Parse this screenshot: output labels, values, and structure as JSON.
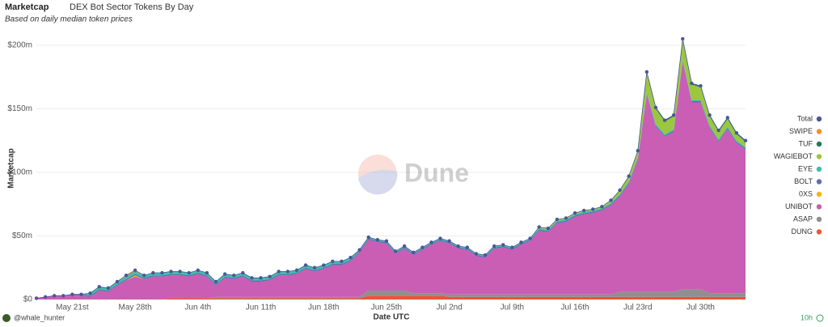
{
  "chart_data": {
    "type": "stacked_area",
    "title": "Marketcap",
    "subtitle": "DEX Bot Sector Tokens By Day",
    "note": "Based on daily median token prices",
    "xlabel": "Date UTC",
    "ylabel": "Marketcap",
    "watermark": "Dune",
    "author": "@whale_hunter",
    "refresh": "10h",
    "categories": [
      "May 17th",
      "May 18th",
      "May 19th",
      "May 20th",
      "May 21st",
      "May 22nd",
      "May 23rd",
      "May 24th",
      "May 25th",
      "May 26th",
      "May 27th",
      "May 28th",
      "May 29th",
      "May 30th",
      "May 31st",
      "Jun 1st",
      "Jun 2nd",
      "Jun 3rd",
      "Jun 4th",
      "Jun 5th",
      "Jun 6th",
      "Jun 7th",
      "Jun 8th",
      "Jun 9th",
      "Jun 10th",
      "Jun 11th",
      "Jun 12th",
      "Jun 13th",
      "Jun 14th",
      "Jun 15th",
      "Jun 16th",
      "Jun 17th",
      "Jun 18th",
      "Jun 19th",
      "Jun 20th",
      "Jun 21st",
      "Jun 22nd",
      "Jun 23rd",
      "Jun 24th",
      "Jun 25th",
      "Jun 26th",
      "Jun 27th",
      "Jun 28th",
      "Jun 29th",
      "Jun 30th",
      "Jul 1st",
      "Jul 2nd",
      "Jul 3rd",
      "Jul 4th",
      "Jul 5th",
      "Jul 6th",
      "Jul 7th",
      "Jul 8th",
      "Jul 9th",
      "Jul 10th",
      "Jul 11th",
      "Jul 12th",
      "Jul 13th",
      "Jul 14th",
      "Jul 15th",
      "Jul 16th",
      "Jul 17th",
      "Jul 18th",
      "Jul 19th",
      "Jul 20th",
      "Jul 21st",
      "Jul 22nd",
      "Jul 23rd",
      "Jul 24th",
      "Jul 25th",
      "Jul 26th",
      "Jul 27th",
      "Jul 28th",
      "Jul 29th",
      "Jul 30th",
      "Jul 31st",
      "Aug 1st",
      "Aug 2nd",
      "Aug 3rd",
      "Aug 4th"
    ],
    "xticks": [
      "May 21st",
      "May 28th",
      "Jun 4th",
      "Jun 11th",
      "Jun 18th",
      "Jun 25th",
      "Jul 2nd",
      "Jul 9th",
      "Jul 16th",
      "Jul 23rd",
      "Jul 30th"
    ],
    "ylim": [
      0,
      212
    ],
    "yticks": [
      {
        "value": 0,
        "label": "$0"
      },
      {
        "value": 50,
        "label": "$50m"
      },
      {
        "value": 100,
        "label": "$100m"
      },
      {
        "value": 150,
        "label": "$150m"
      },
      {
        "value": 200,
        "label": "$200m"
      }
    ],
    "grid": true,
    "legend": "right",
    "series": [
      {
        "name": "Total",
        "color": "#4a5799",
        "values": [
          1,
          2,
          3,
          3,
          4,
          4,
          5,
          10,
          9,
          14,
          19,
          23,
          19,
          21,
          21,
          22,
          22,
          21,
          23,
          21,
          14,
          20,
          19,
          21,
          17,
          17,
          18,
          22,
          22,
          23,
          27,
          25,
          27,
          30,
          30,
          33,
          39,
          49,
          47,
          46,
          38,
          42,
          37,
          41,
          45,
          48,
          46,
          42,
          41,
          36,
          35,
          42,
          43,
          41,
          45,
          48,
          57,
          56,
          63,
          64,
          68,
          70,
          71,
          73,
          78,
          86,
          97,
          117,
          179,
          151,
          141,
          145,
          205,
          170,
          168,
          145,
          133,
          143,
          131,
          125
        ]
      },
      {
        "name": "SWIPE",
        "color": "#f28e2b",
        "values": [
          0,
          0,
          0,
          0,
          0,
          0,
          0,
          0,
          0,
          0,
          1,
          1,
          0,
          0,
          0,
          0,
          0,
          0,
          0,
          0,
          0,
          0,
          0,
          0,
          0,
          0,
          0,
          0,
          0,
          0,
          0,
          0,
          0,
          0,
          0,
          0,
          0,
          0,
          0,
          0,
          0,
          0,
          0,
          0,
          0,
          0,
          0,
          0,
          0,
          0,
          0,
          0,
          0,
          0,
          0,
          0,
          0,
          0,
          0,
          0,
          0,
          0,
          0,
          0,
          0,
          0,
          0,
          0,
          0,
          0,
          0,
          0,
          0,
          0,
          0,
          0,
          0,
          0,
          0,
          0
        ]
      },
      {
        "name": "TUF",
        "color": "#1f7a5c",
        "values": [
          0,
          0,
          0,
          0,
          0,
          0,
          0,
          0,
          0,
          0,
          0,
          0,
          0,
          0,
          0,
          0,
          0,
          0,
          0,
          0,
          0,
          0,
          0,
          0,
          0,
          0,
          0,
          0,
          0,
          0,
          0,
          0,
          0,
          0,
          0,
          0,
          0,
          0,
          0,
          0,
          0,
          0,
          0,
          0,
          0,
          0,
          0,
          0,
          0,
          0,
          0,
          0,
          0,
          0,
          0,
          0,
          0,
          0,
          0,
          0,
          0,
          0,
          0,
          0,
          0,
          0,
          0,
          0,
          1,
          1,
          1,
          1,
          1,
          1,
          1,
          1,
          1,
          1,
          1,
          1
        ]
      },
      {
        "name": "WAGIEBOT",
        "color": "#9cc63e",
        "values": [
          0,
          0,
          0,
          0,
          0,
          0,
          0,
          0,
          0,
          0,
          0,
          0,
          0,
          0,
          0,
          0,
          0,
          0,
          0,
          0,
          0,
          0,
          0,
          0,
          0,
          0,
          0,
          0,
          0,
          0,
          0,
          0,
          0,
          0,
          0,
          0,
          0,
          0,
          0,
          0,
          0,
          0,
          0,
          0,
          0,
          0,
          0,
          0,
          0,
          0,
          0,
          0,
          0,
          0,
          0,
          0,
          1,
          1,
          1,
          1,
          1,
          1,
          1,
          1,
          2,
          3,
          4,
          5,
          15,
          12,
          10,
          10,
          15,
          12,
          10,
          7,
          6,
          6,
          5,
          4
        ]
      },
      {
        "name": "EYE",
        "color": "#3dbfa8",
        "values": [
          0,
          0,
          0,
          0,
          0,
          0,
          2,
          2,
          2,
          2,
          2,
          2,
          2,
          2,
          2,
          2,
          2,
          2,
          2,
          2,
          2,
          2,
          2,
          2,
          2,
          2,
          2,
          2,
          2,
          2,
          2,
          2,
          2,
          2,
          2,
          2,
          1,
          1,
          1,
          1,
          1,
          1,
          1,
          1,
          1,
          1,
          1,
          1,
          1,
          1,
          1,
          1,
          1,
          1,
          1,
          1,
          1,
          1,
          1,
          1,
          1,
          1,
          1,
          1,
          1,
          1,
          1,
          1,
          1,
          1,
          1,
          1,
          1,
          1,
          1,
          1,
          1,
          1,
          1,
          1
        ]
      },
      {
        "name": "BOLT",
        "color": "#5b6fb0",
        "values": [
          0,
          0,
          0,
          0,
          1,
          1,
          1,
          1,
          1,
          1,
          1,
          1,
          1,
          1,
          1,
          1,
          1,
          1,
          1,
          1,
          1,
          1,
          1,
          1,
          1,
          1,
          1,
          1,
          1,
          1,
          1,
          1,
          1,
          1,
          1,
          1,
          1,
          1,
          1,
          1,
          1,
          1,
          1,
          1,
          1,
          1,
          1,
          1,
          1,
          1,
          1,
          1,
          1,
          1,
          1,
          1,
          1,
          1,
          1,
          1,
          1,
          1,
          1,
          1,
          1,
          1,
          1,
          1,
          1,
          1,
          1,
          1,
          1,
          1,
          1,
          1,
          1,
          1,
          1,
          1
        ]
      },
      {
        "name": "0XS",
        "color": "#f2b51d",
        "values": [
          0,
          0,
          0,
          0,
          0,
          0,
          0,
          0,
          0,
          0,
          0,
          1,
          0,
          0,
          0,
          0,
          0,
          0,
          0,
          0,
          0,
          0,
          0,
          0,
          0,
          0,
          0,
          0,
          0,
          0,
          0,
          0,
          0,
          0,
          0,
          0,
          0,
          0,
          0,
          0,
          0,
          0,
          0,
          0,
          0,
          0,
          0,
          0,
          0,
          0,
          0,
          0,
          0,
          0,
          0,
          0,
          0,
          0,
          0,
          0,
          0,
          0,
          0,
          0,
          0,
          0,
          0,
          0,
          0,
          0,
          0,
          0,
          0,
          0,
          0,
          0,
          0,
          0,
          0,
          0
        ]
      },
      {
        "name": "UNIBOT",
        "color": "#c95eb4",
        "values": [
          1,
          2,
          3,
          3,
          3,
          3,
          2,
          7,
          6,
          11,
          15,
          18,
          16,
          18,
          18,
          18,
          18,
          17,
          19,
          17,
          9,
          15,
          14,
          16,
          12,
          12,
          13,
          17,
          17,
          18,
          22,
          20,
          22,
          25,
          25,
          28,
          35,
          40,
          38,
          37,
          29,
          33,
          30,
          34,
          38,
          41,
          40,
          36,
          35,
          30,
          29,
          36,
          37,
          35,
          39,
          42,
          50,
          49,
          56,
          57,
          61,
          63,
          64,
          66,
          70,
          75,
          85,
          104,
          155,
          130,
          122,
          126,
          179,
          147,
          147,
          130,
          119,
          129,
          118,
          113
        ]
      },
      {
        "name": "ASAP",
        "color": "#8f8f8f",
        "values": [
          0,
          0,
          0,
          0,
          0,
          0,
          0,
          0,
          0,
          0,
          0,
          0,
          0,
          0,
          0,
          0,
          0,
          0,
          0,
          0,
          1,
          1,
          1,
          1,
          1,
          1,
          1,
          1,
          1,
          1,
          1,
          1,
          1,
          1,
          1,
          1,
          1,
          4,
          4,
          4,
          4,
          4,
          2,
          2,
          2,
          2,
          2,
          2,
          2,
          2,
          2,
          2,
          2,
          2,
          2,
          2,
          2,
          2,
          2,
          2,
          2,
          2,
          2,
          2,
          2,
          4,
          4,
          4,
          4,
          4,
          4,
          4,
          6,
          6,
          6,
          3,
          3,
          3,
          3,
          3
        ]
      },
      {
        "name": "DUNG",
        "color": "#e8563a",
        "values": [
          0,
          0,
          0,
          0,
          0,
          0,
          0,
          0,
          0,
          0,
          0,
          0,
          0,
          0,
          0,
          1,
          1,
          1,
          1,
          1,
          1,
          1,
          1,
          1,
          1,
          1,
          1,
          1,
          1,
          1,
          1,
          1,
          1,
          1,
          1,
          1,
          1,
          3,
          3,
          3,
          3,
          3,
          3,
          3,
          3,
          3,
          2,
          2,
          2,
          2,
          2,
          2,
          2,
          2,
          2,
          2,
          2,
          2,
          2,
          2,
          2,
          2,
          2,
          2,
          2,
          2,
          2,
          2,
          2,
          2,
          2,
          2,
          2,
          2,
          2,
          2,
          2,
          2,
          2,
          2
        ]
      }
    ]
  }
}
